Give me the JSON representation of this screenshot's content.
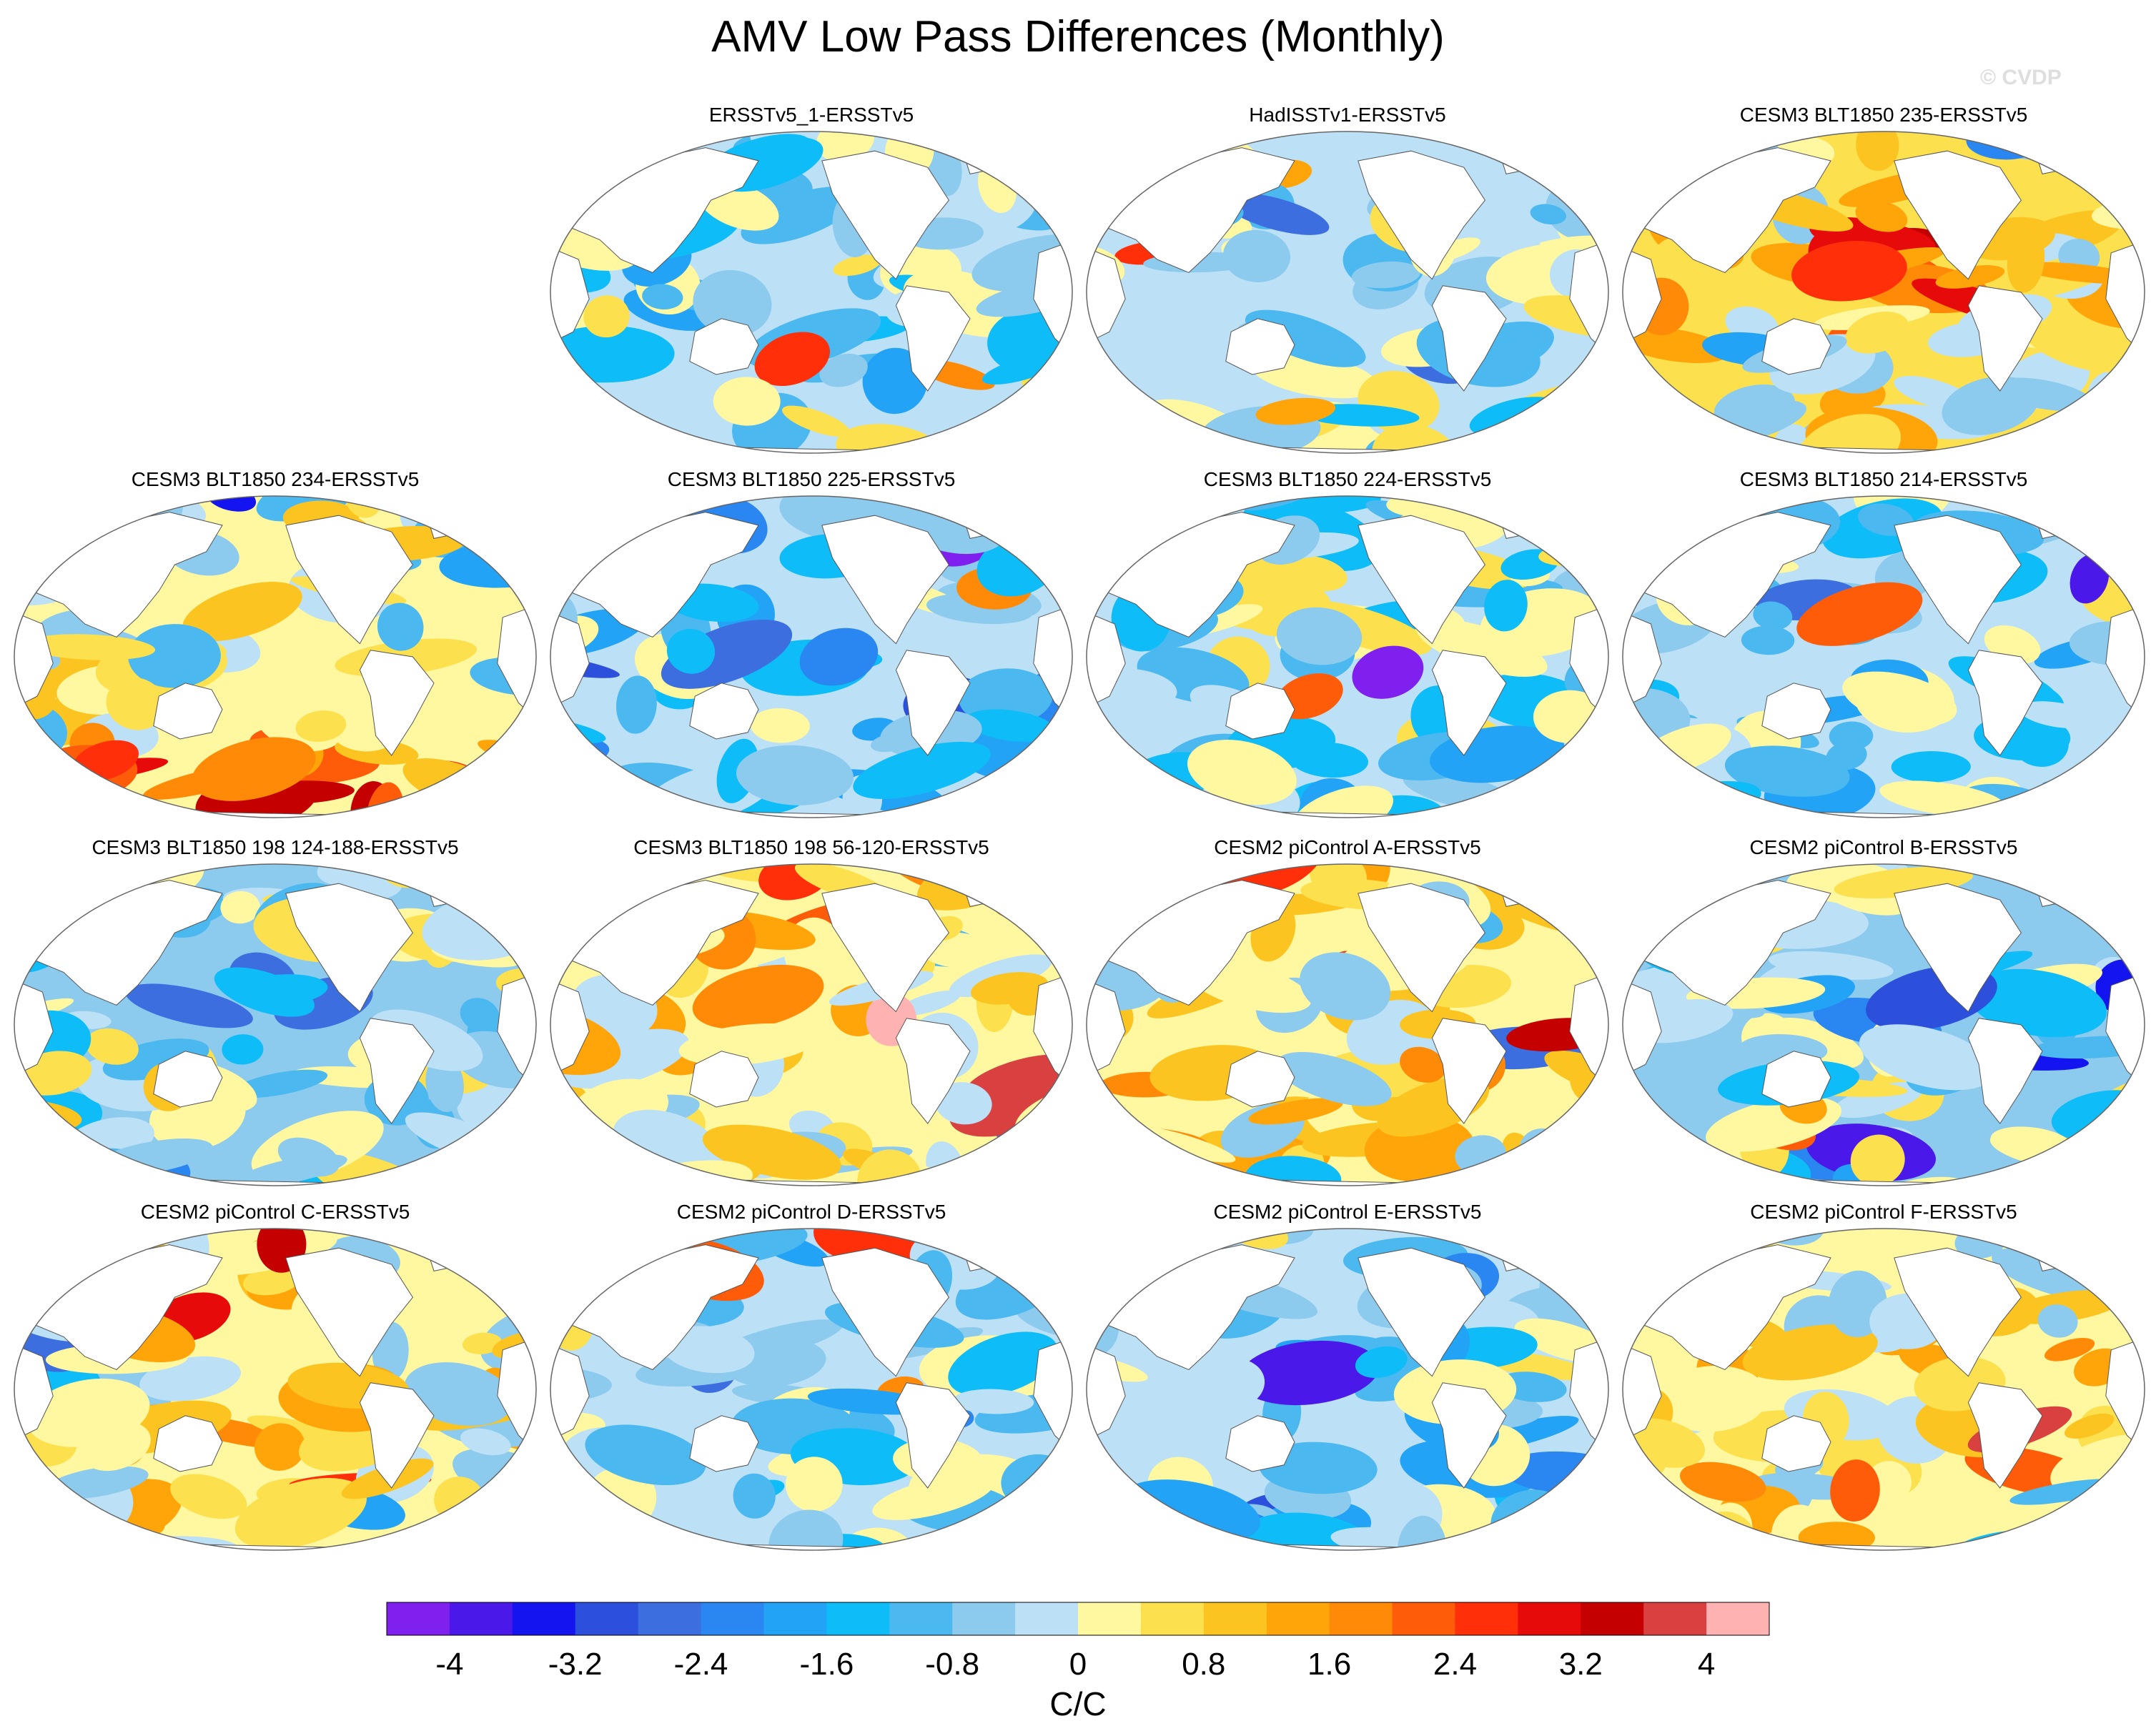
{
  "title": "AMV Low Pass Differences (Monthly)",
  "watermark": "© CVDP",
  "chart_data": {
    "type": "heatmap",
    "title": "AMV Low Pass Differences (Monthly)",
    "projection": "Robinson global map, Pacific-centered",
    "variable_units": "C/C",
    "panels": [
      {
        "title": "ERSSTv5_1-ERSSTv5",
        "pattern": "weak",
        "row": 0,
        "col": 1
      },
      {
        "title": "HadISSTv1-ERSSTv5",
        "pattern": "weak",
        "row": 0,
        "col": 2
      },
      {
        "title": "CESM3 BLT1850 235-ERSSTv5",
        "pattern": "warm-pacific",
        "row": 0,
        "col": 3
      },
      {
        "title": "CESM3 BLT1850 234-ERSSTv5",
        "pattern": "strong-mixed",
        "row": 1,
        "col": 0
      },
      {
        "title": "CESM3 BLT1850 225-ERSSTv5",
        "pattern": "cool",
        "row": 1,
        "col": 1
      },
      {
        "title": "CESM3 BLT1850 224-ERSSTv5",
        "pattern": "weak",
        "row": 1,
        "col": 2
      },
      {
        "title": "CESM3 BLT1850 214-ERSSTv5",
        "pattern": "weak",
        "row": 1,
        "col": 3
      },
      {
        "title": "CESM3 BLT1850 198 124-188-ERSSTv5",
        "pattern": "cool-pacific",
        "row": 2,
        "col": 0
      },
      {
        "title": "CESM3 BLT1850 198 56-120-ERSSTv5",
        "pattern": "mild-warm",
        "row": 2,
        "col": 1
      },
      {
        "title": "CESM2 piControl A-ERSSTv5",
        "pattern": "mild-warm",
        "row": 2,
        "col": 2
      },
      {
        "title": "CESM2 piControl B-ERSSTv5",
        "pattern": "cool-pacific",
        "row": 2,
        "col": 3
      },
      {
        "title": "CESM2 piControl C-ERSSTv5",
        "pattern": "mild-warm",
        "row": 3,
        "col": 0
      },
      {
        "title": "CESM2 piControl D-ERSSTv5",
        "pattern": "weak",
        "row": 3,
        "col": 1
      },
      {
        "title": "CESM2 piControl E-ERSSTv5",
        "pattern": "cool",
        "row": 3,
        "col": 2
      },
      {
        "title": "CESM2 piControl F-ERSSTv5",
        "pattern": "mild-warm",
        "row": 3,
        "col": 3
      }
    ],
    "colorbar": {
      "label": "C/C",
      "levels": [
        -4.4,
        -4.0,
        -3.6,
        -3.2,
        -2.8,
        -2.4,
        -2.0,
        -1.6,
        -1.2,
        -0.8,
        -0.4,
        0,
        0.4,
        0.8,
        1.2,
        1.6,
        2.0,
        2.4,
        2.8,
        3.2,
        3.6,
        4.0,
        4.4
      ],
      "tick_labels": [
        "-4",
        "-3.2",
        "-2.4",
        "-1.6",
        "-0.8",
        "0",
        "0.8",
        "1.6",
        "2.4",
        "3.2",
        "4"
      ],
      "tick_values": [
        -4,
        -3.2,
        -2.4,
        -1.6,
        -0.8,
        0,
        0.8,
        1.6,
        2.4,
        3.2,
        4
      ],
      "colors": [
        "#7f20ee",
        "#4a18e8",
        "#1414f0",
        "#2c50dc",
        "#3c6ee0",
        "#2a86f0",
        "#23a3f5",
        "#0ebcf8",
        "#4cb8f0",
        "#8ccaee",
        "#bce0f6",
        "#fff8a0",
        "#fde04e",
        "#fcc420",
        "#ffa50a",
        "#ff8a08",
        "#ff5c0a",
        "#ff2f0a",
        "#e60a0a",
        "#c40000",
        "#d94040",
        "#ffb2b2"
      ]
    }
  }
}
